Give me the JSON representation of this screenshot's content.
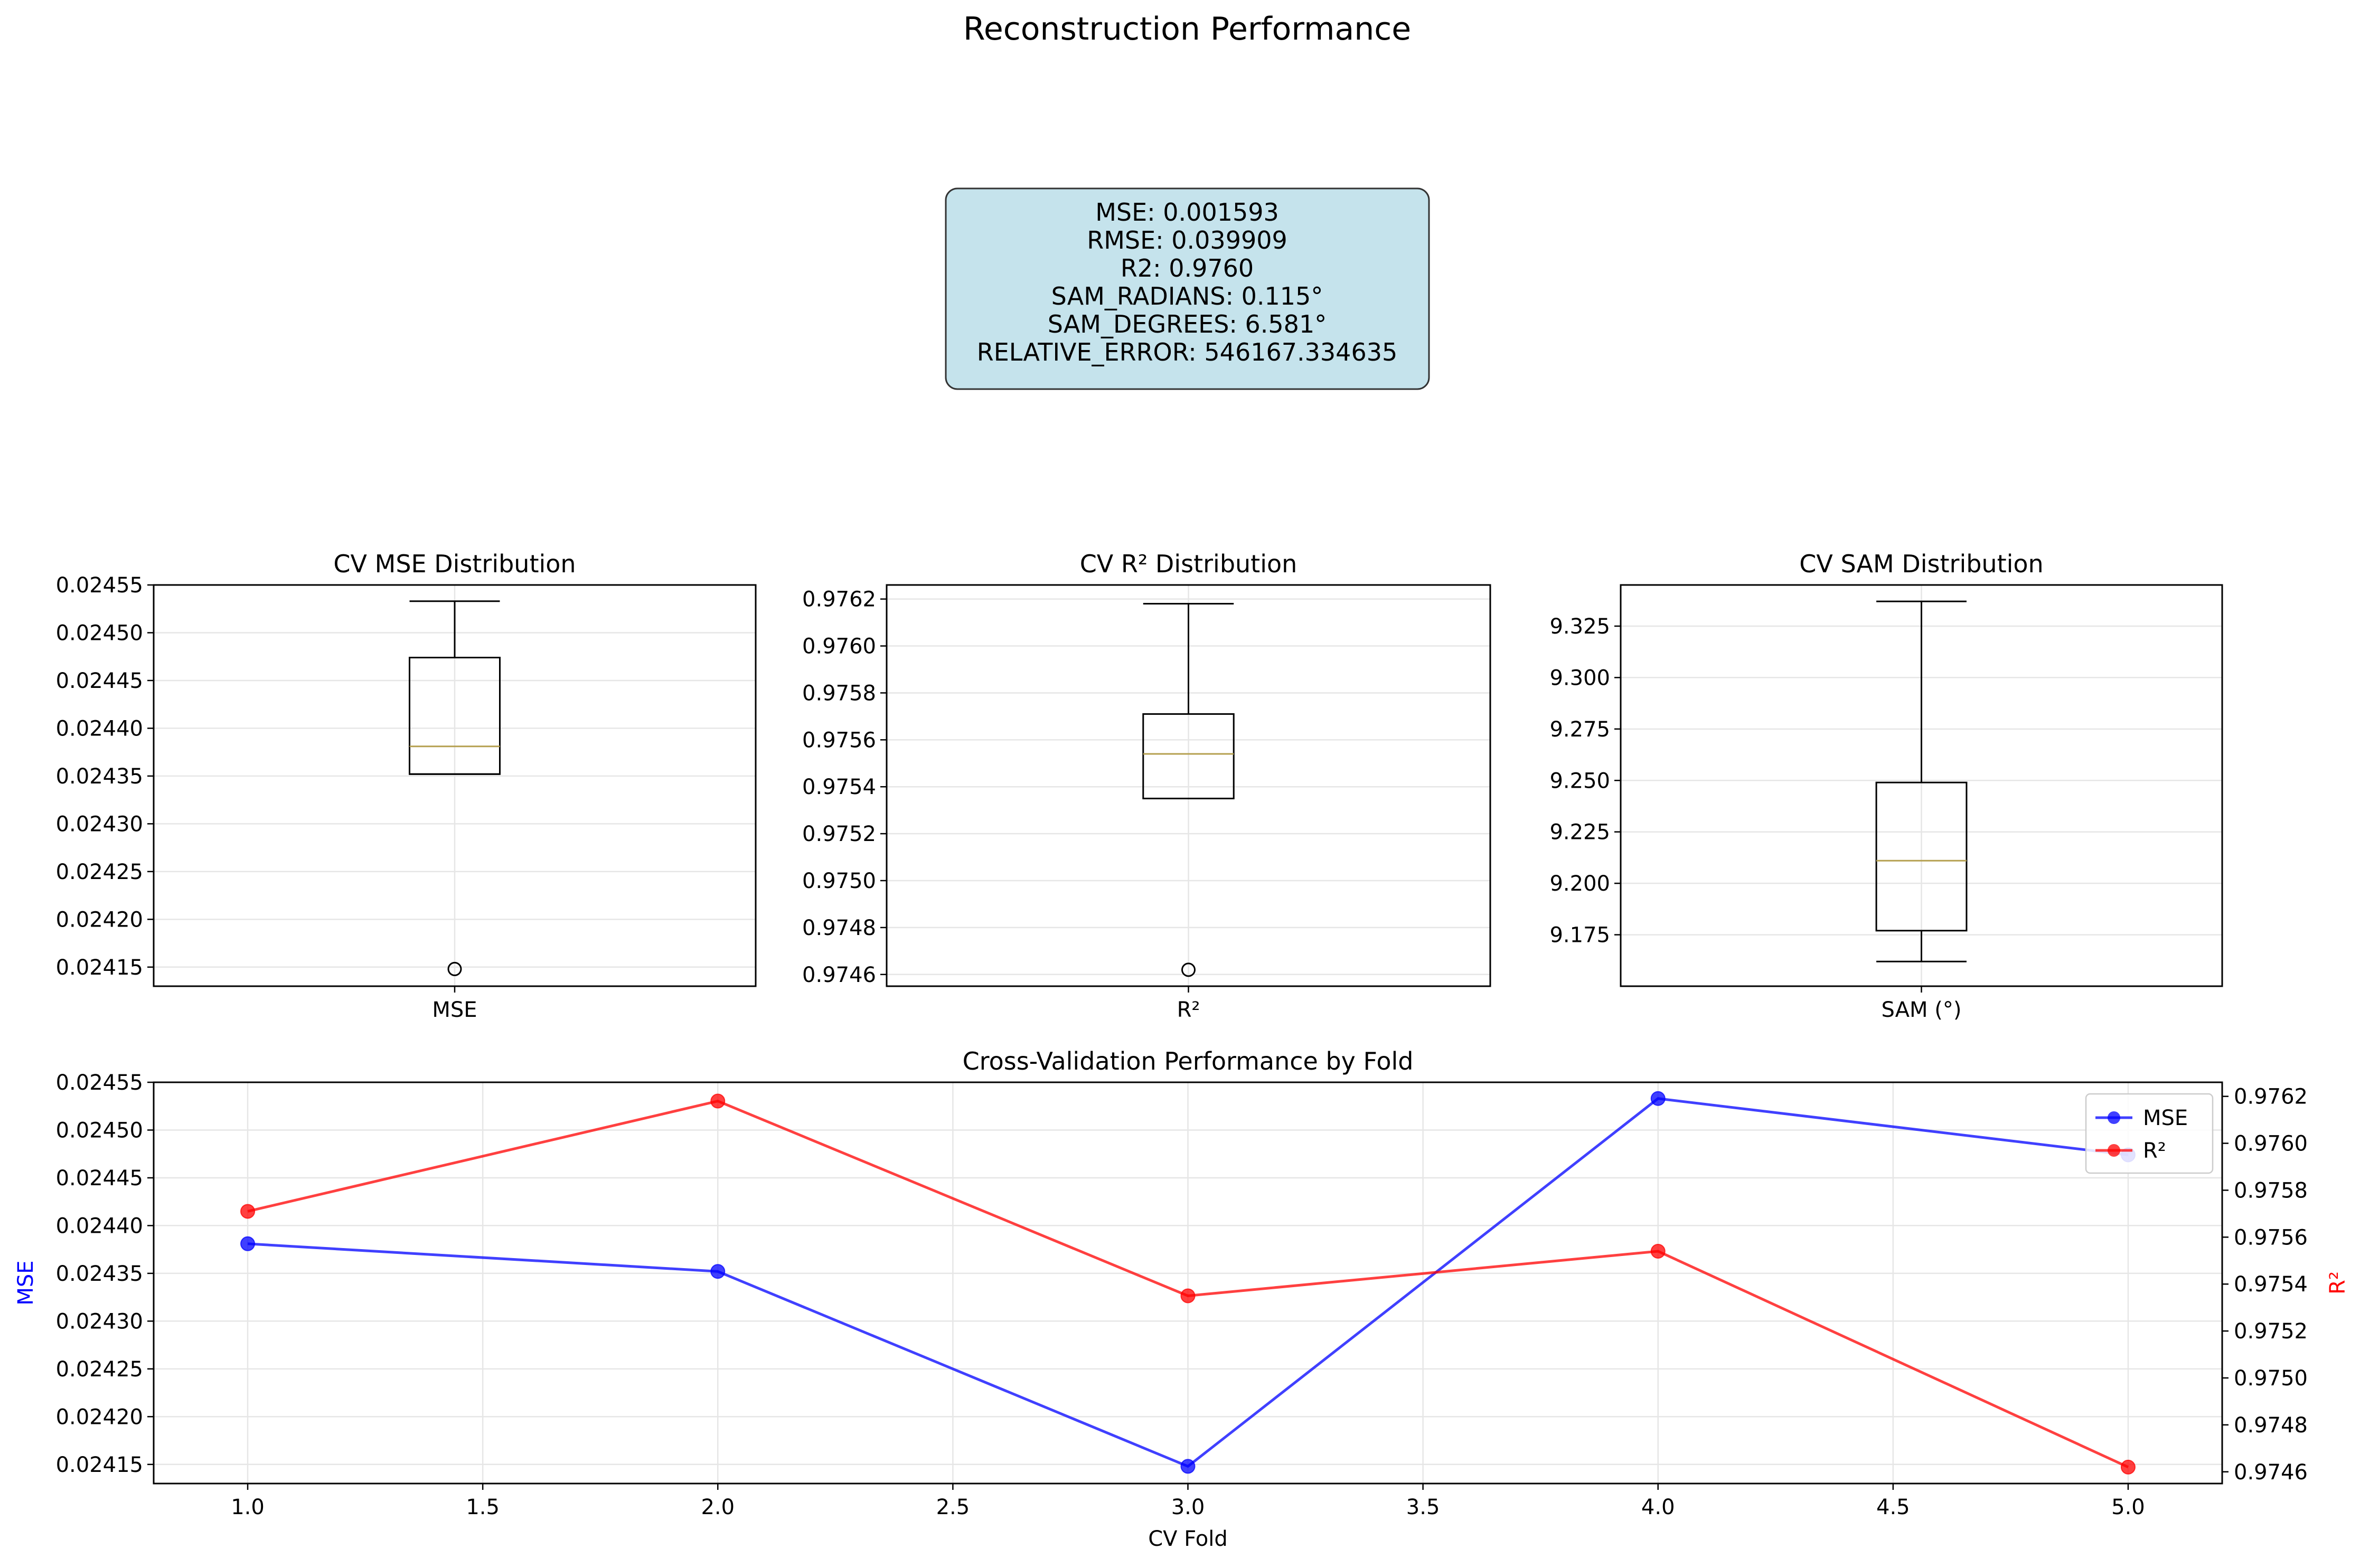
{
  "figure": {
    "title": "Reconstruction Performance"
  },
  "metrics_box": {
    "lines": [
      "MSE: 0.001593",
      "RMSE: 0.039909",
      "R2: 0.9760",
      "SAM_RADIANS: 0.115°",
      "SAM_DEGREES: 6.581°",
      "RELATIVE_ERROR: 546167.334635"
    ],
    "bg_color": "#c5e3ec"
  },
  "colors": {
    "mse_line": "#0000ff",
    "r2_line": "#ff0000",
    "median": "#b5a050",
    "grid": "#e6e6e6"
  },
  "chart_data": [
    {
      "type": "box",
      "title": "CV MSE Distribution",
      "category": "MSE",
      "ylim": [
        0.02413,
        0.02455
      ],
      "yticks": [
        0.02415,
        0.0242,
        0.02425,
        0.0243,
        0.02435,
        0.0244,
        0.02445,
        0.0245,
        0.02455
      ],
      "ytick_labels": [
        "0.02415",
        "0.02420",
        "0.02425",
        "0.02430",
        "0.02435",
        "0.02440",
        "0.02445",
        "0.02450",
        "0.02455"
      ],
      "box": {
        "whisker_low": 0.024352,
        "q1": 0.024352,
        "median": 0.024381,
        "q3": 0.024474,
        "whisker_high": 0.024533,
        "outliers": [
          0.024148
        ]
      },
      "grid": true
    },
    {
      "type": "box",
      "title": "CV R² Distribution",
      "category": "R²",
      "ylim": [
        0.97455,
        0.97626
      ],
      "yticks": [
        0.9746,
        0.9748,
        0.975,
        0.9752,
        0.9754,
        0.9756,
        0.9758,
        0.976,
        0.9762
      ],
      "ytick_labels": [
        "0.9746",
        "0.9748",
        "0.9750",
        "0.9752",
        "0.9754",
        "0.9756",
        "0.9758",
        "0.9760",
        "0.9762"
      ],
      "box": {
        "whisker_low": 0.97535,
        "q1": 0.97535,
        "median": 0.97554,
        "q3": 0.97571,
        "whisker_high": 0.97618,
        "outliers": [
          0.97462
        ]
      },
      "grid": true
    },
    {
      "type": "box",
      "title": "CV SAM Distribution",
      "category": "SAM (°)",
      "ylim": [
        9.15,
        9.345
      ],
      "yticks": [
        9.175,
        9.2,
        9.225,
        9.25,
        9.275,
        9.3,
        9.325
      ],
      "ytick_labels": [
        "9.175",
        "9.200",
        "9.225",
        "9.250",
        "9.275",
        "9.300",
        "9.325"
      ],
      "box": {
        "whisker_low": 9.162,
        "q1": 9.177,
        "median": 9.211,
        "q3": 9.249,
        "whisker_high": 9.337,
        "outliers": []
      },
      "grid": true
    },
    {
      "type": "line",
      "title": "Cross-Validation Performance by Fold",
      "xlabel": "CV Fold",
      "ylabel": "MSE",
      "ylabel_right": "R²",
      "x": [
        1.0,
        2.0,
        3.0,
        4.0,
        5.0
      ],
      "xlim": [
        0.8,
        5.2
      ],
      "xticks": [
        1.0,
        1.5,
        2.0,
        2.5,
        3.0,
        3.5,
        4.0,
        4.5,
        5.0
      ],
      "xtick_labels": [
        "1.0",
        "1.5",
        "2.0",
        "2.5",
        "3.0",
        "3.5",
        "4.0",
        "4.5",
        "5.0"
      ],
      "ylim": [
        0.02413,
        0.02455
      ],
      "yticks": [
        0.02415,
        0.0242,
        0.02425,
        0.0243,
        0.02435,
        0.0244,
        0.02445,
        0.0245,
        0.02455
      ],
      "ytick_labels": [
        "0.02415",
        "0.02420",
        "0.02425",
        "0.02430",
        "0.02435",
        "0.02440",
        "0.02445",
        "0.02450",
        "0.02455"
      ],
      "ylim_right": [
        0.97455,
        0.97626
      ],
      "yticks_right": [
        0.9746,
        0.9748,
        0.975,
        0.9752,
        0.9754,
        0.9756,
        0.9758,
        0.976,
        0.9762
      ],
      "ytick_labels_right": [
        "0.9746",
        "0.9748",
        "0.9750",
        "0.9752",
        "0.9754",
        "0.9756",
        "0.9758",
        "0.9760",
        "0.9762"
      ],
      "series": [
        {
          "name": "MSE",
          "axis": "left",
          "values": [
            0.024381,
            0.024352,
            0.024148,
            0.024533,
            0.024474
          ]
        },
        {
          "name": "R²",
          "axis": "right",
          "values": [
            0.97571,
            0.97618,
            0.97535,
            0.97554,
            0.97462
          ]
        }
      ],
      "legend": "top-right",
      "grid": true
    }
  ]
}
